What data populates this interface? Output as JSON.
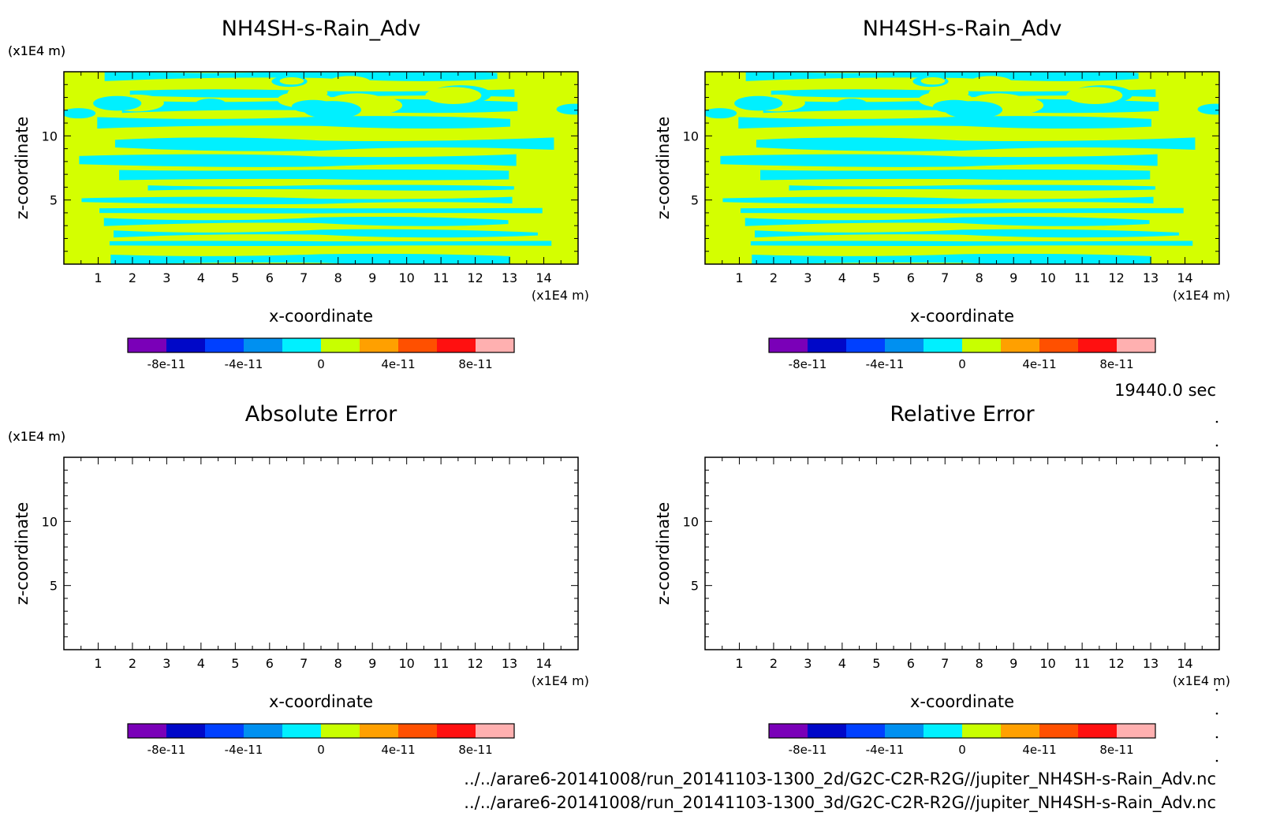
{
  "figure": {
    "time_label": "19440.0 sec",
    "file_paths": [
      "../../arare6-20141008/run_20141103-1300_2d/G2C-C2R-R2G//jupiter_NH4SH-s-Rain_Adv.nc",
      "../../arare6-20141008/run_20141103-1300_3d/G2C-C2R-R2G//jupiter_NH4SH-s-Rain_Adv.nc"
    ],
    "colors": {
      "field_a": "#d4ff00",
      "field_b": "#00f0ff"
    }
  },
  "chart_data": [
    {
      "type": "heatmap",
      "title": "NH4SH-s-Rain_Adv",
      "xlabel": "x-coordinate",
      "ylabel": "z-coordinate",
      "x_unit": "(x1E4 m)",
      "y_unit": "(x1E4 m)",
      "xlim": [
        0,
        15
      ],
      "ylim": [
        0,
        15
      ],
      "x_ticks": [
        "1",
        "2",
        "3",
        "4",
        "5",
        "6",
        "7",
        "8",
        "9",
        "10",
        "11",
        "12",
        "13",
        "14"
      ],
      "y_ticks": [
        "5",
        "10"
      ],
      "filled": true,
      "colorbar": {
        "colors": [
          "#7a00b8",
          "#0008c8",
          "#0040ff",
          "#0090f0",
          "#00f0ff",
          "#c8ff00",
          "#ffa000",
          "#ff5000",
          "#ff1010",
          "#ffb0b0"
        ],
        "labels": [
          "-8e-11",
          "-4e-11",
          "0",
          "4e-11",
          "8e-11"
        ]
      }
    },
    {
      "type": "heatmap",
      "title": "NH4SH-s-Rain_Adv",
      "xlabel": "x-coordinate",
      "ylabel": "z-coordinate",
      "x_unit": "(x1E4 m)",
      "y_unit": "(x1E4 m)",
      "xlim": [
        0,
        15
      ],
      "ylim": [
        0,
        15
      ],
      "x_ticks": [
        "1",
        "2",
        "3",
        "4",
        "5",
        "6",
        "7",
        "8",
        "9",
        "10",
        "11",
        "12",
        "13",
        "14"
      ],
      "y_ticks": [
        "5",
        "10"
      ],
      "filled": true,
      "colorbar": {
        "colors": [
          "#7a00b8",
          "#0008c8",
          "#0040ff",
          "#0090f0",
          "#00f0ff",
          "#c8ff00",
          "#ffa000",
          "#ff5000",
          "#ff1010",
          "#ffb0b0"
        ],
        "labels": [
          "-8e-11",
          "-4e-11",
          "0",
          "4e-11",
          "8e-11"
        ]
      }
    },
    {
      "type": "heatmap",
      "title": "Absolute Error",
      "xlabel": "x-coordinate",
      "ylabel": "z-coordinate",
      "x_unit": "(x1E4 m)",
      "y_unit": "(x1E4 m)",
      "xlim": [
        0,
        15
      ],
      "ylim": [
        0,
        15
      ],
      "x_ticks": [
        "1",
        "2",
        "3",
        "4",
        "5",
        "6",
        "7",
        "8",
        "9",
        "10",
        "11",
        "12",
        "13",
        "14"
      ],
      "y_ticks": [
        "5",
        "10"
      ],
      "filled": false,
      "colorbar": {
        "colors": [
          "#7a00b8",
          "#0008c8",
          "#0040ff",
          "#0090f0",
          "#00f0ff",
          "#c8ff00",
          "#ffa000",
          "#ff5000",
          "#ff1010",
          "#ffb0b0"
        ],
        "labels": [
          "-8e-11",
          "-4e-11",
          "0",
          "4e-11",
          "8e-11"
        ]
      }
    },
    {
      "type": "heatmap",
      "title": "Relative Error",
      "xlabel": "x-coordinate",
      "ylabel": "z-coordinate",
      "x_unit": "(x1E4 m)",
      "y_unit": "(x1E4 m)",
      "xlim": [
        0,
        15
      ],
      "ylim": [
        0,
        15
      ],
      "x_ticks": [
        "1",
        "2",
        "3",
        "4",
        "5",
        "6",
        "7",
        "8",
        "9",
        "10",
        "11",
        "12",
        "13",
        "14"
      ],
      "y_ticks": [
        "5",
        "10"
      ],
      "filled": false,
      "colorbar": {
        "colors": [
          "#7a00b8",
          "#0008c8",
          "#0040ff",
          "#0090f0",
          "#00f0ff",
          "#c8ff00",
          "#ffa000",
          "#ff5000",
          "#ff1010",
          "#ffb0b0"
        ],
        "labels": [
          "-8e-11",
          "-4e-11",
          "0",
          "4e-11",
          "8e-11"
        ]
      }
    }
  ]
}
